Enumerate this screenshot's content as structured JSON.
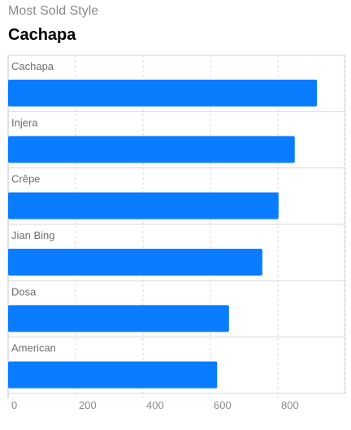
{
  "header": {
    "eyebrow": "Most Sold Style",
    "headline": "Cachapa"
  },
  "chart_data": {
    "type": "bar",
    "orientation": "horizontal",
    "categories": [
      "Cachapa",
      "Injera",
      "Crêpe",
      "Jian Bing",
      "Dosa",
      "American"
    ],
    "values": [
      916,
      850,
      802,
      754,
      655,
      620
    ],
    "xlim": [
      0,
      1000
    ],
    "xticks": [
      0,
      200,
      400,
      600,
      800
    ],
    "grid": true,
    "bar_color": "#0a7cff"
  }
}
